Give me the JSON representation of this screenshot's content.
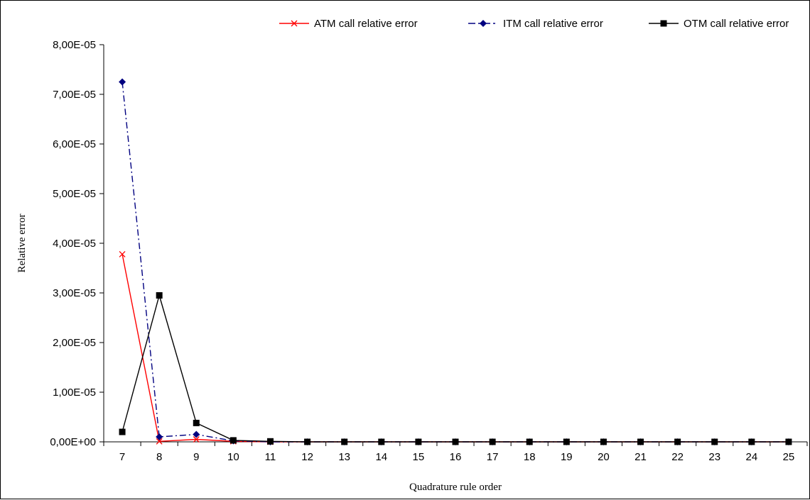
{
  "chart_data": {
    "type": "line",
    "xlabel": "Quadrature rule order",
    "ylabel": "Relative error",
    "x": [
      7,
      8,
      9,
      10,
      11,
      12,
      13,
      14,
      15,
      16,
      17,
      18,
      19,
      20,
      21,
      22,
      23,
      24,
      25
    ],
    "ylim": [
      0,
      8e-05
    ],
    "ytick_values": [
      0,
      1e-05,
      2e-05,
      3e-05,
      4e-05,
      5e-05,
      6e-05,
      7e-05,
      8e-05
    ],
    "ytick_labels": [
      "0,00E+00",
      "1,00E-05",
      "2,00E-05",
      "3,00E-05",
      "4,00E-05",
      "5,00E-05",
      "6,00E-05",
      "7,00E-05",
      "8,00E-05"
    ],
    "xtick_labels": [
      "7",
      "8",
      "9",
      "10",
      "11",
      "12",
      "13",
      "14",
      "15",
      "16",
      "17",
      "18",
      "19",
      "20",
      "21",
      "22",
      "23",
      "24",
      "25"
    ],
    "grid": false,
    "legend_position": "top-right",
    "series": [
      {
        "name": "ATM call relative error",
        "color": "#ff0000",
        "marker": "x",
        "line_style": "solid",
        "values": [
          3.78e-05,
          1e-07,
          5e-07,
          1e-07,
          0,
          0,
          0,
          0,
          0,
          0,
          0,
          0,
          0,
          0,
          0,
          0,
          0,
          0,
          0
        ]
      },
      {
        "name": "ITM call relative error",
        "color": "#000080",
        "marker": "diamond",
        "line_style": "dash-dot",
        "values": [
          7.25e-05,
          1e-06,
          1.5e-06,
          2e-07,
          0,
          0,
          0,
          0,
          0,
          0,
          0,
          0,
          0,
          0,
          0,
          0,
          0,
          0,
          0
        ]
      },
      {
        "name": "OTM call relative error",
        "color": "#000000",
        "marker": "square",
        "line_style": "solid",
        "values": [
          2e-06,
          2.95e-05,
          3.8e-06,
          3e-07,
          1e-07,
          0,
          0,
          0,
          0,
          0,
          0,
          0,
          0,
          0,
          0,
          0,
          0,
          0,
          0
        ]
      }
    ]
  }
}
